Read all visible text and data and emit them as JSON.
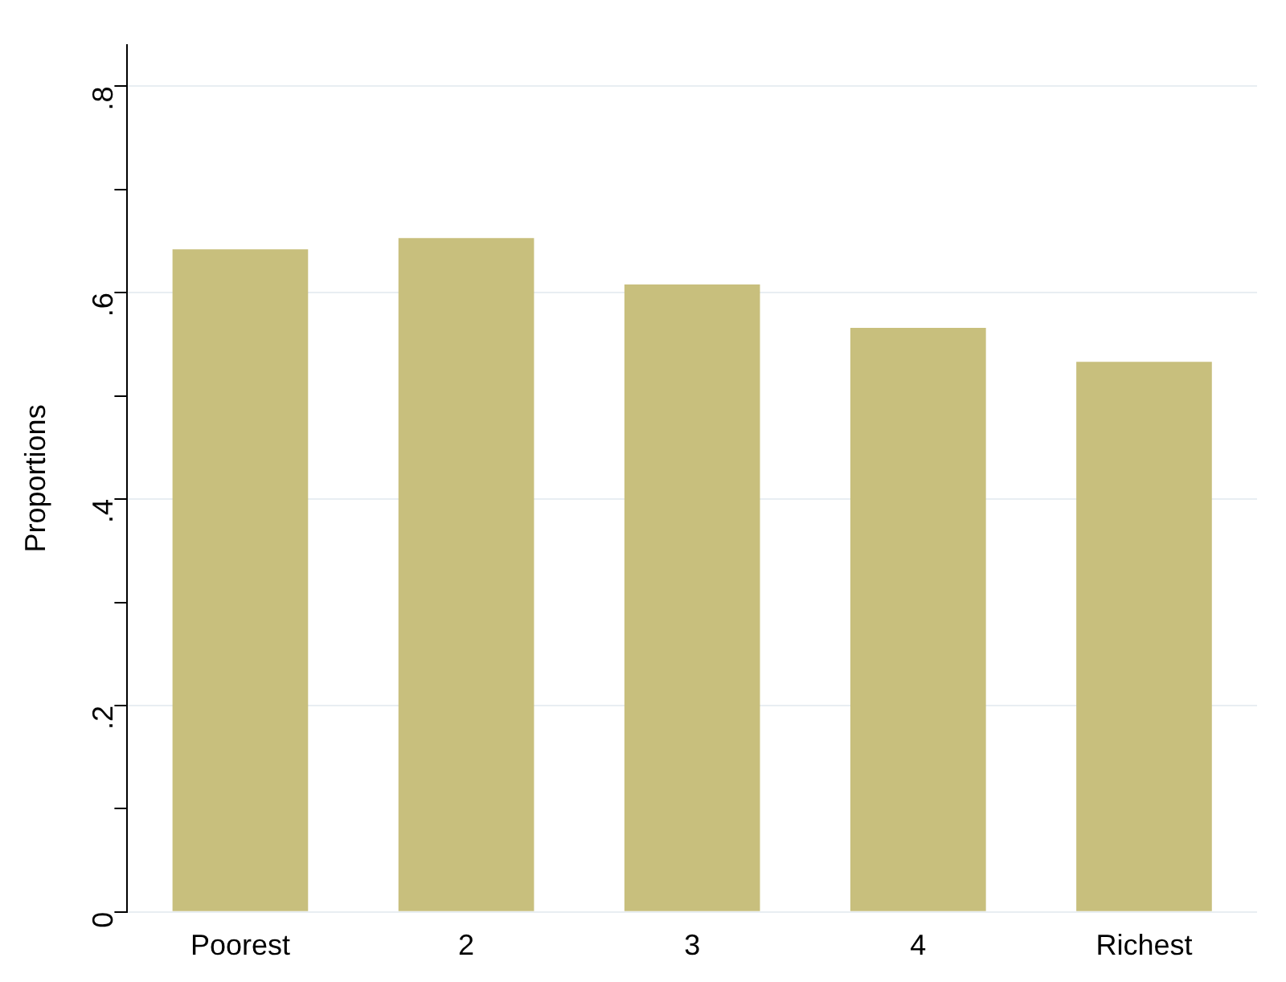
{
  "chart_data": {
    "type": "bar",
    "ylabel": "Proportions",
    "categories": [
      "Poorest",
      "2",
      "3",
      "4",
      "Richest"
    ],
    "values": [
      0.642,
      0.653,
      0.608,
      0.566,
      0.533
    ],
    "color": "#c8bf7d",
    "ylim": [
      0,
      0.84
    ],
    "yticks": [
      0,
      {
        "value": 0.1,
        "label": null
      },
      {
        "value": 0.2,
        "label": ".2"
      },
      {
        "value": 0.3,
        "label": null
      },
      {
        "value": 0.4,
        "label": ".4"
      },
      {
        "value": 0.5,
        "label": null
      },
      {
        "value": 0.6,
        "label": ".6"
      },
      {
        "value": 0.7,
        "label": null
      },
      {
        "value": 0.8,
        "label": ".8"
      }
    ],
    "grid": "y"
  }
}
